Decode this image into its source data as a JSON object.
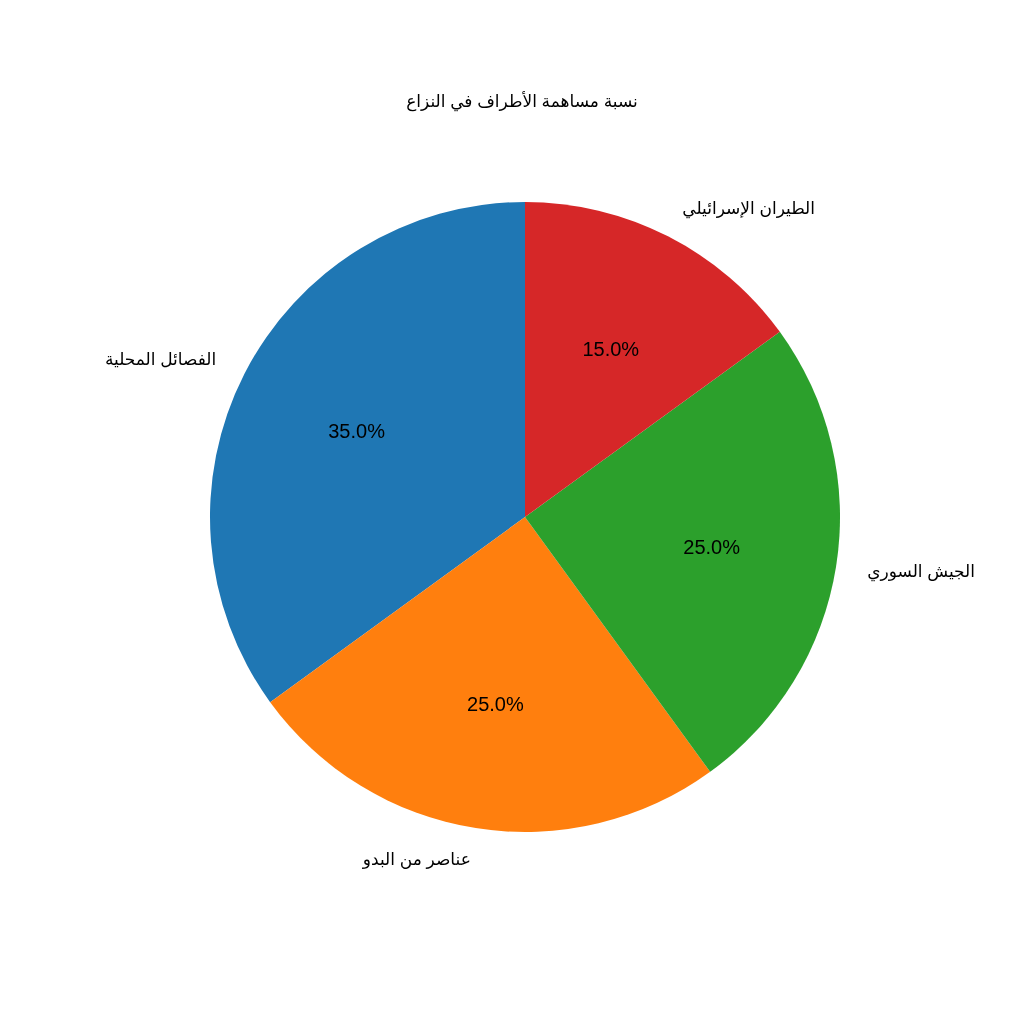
{
  "chart_data": {
    "type": "pie",
    "title": "نسبة مساهمة الأطراف في النزاع",
    "categories": [
      "الفصائل المحلية",
      "عناصر من البدو",
      "الجيش السوري",
      "الطيران الإسرائيلي"
    ],
    "values": [
      35,
      25,
      25,
      15
    ],
    "colors": [
      "#1f77b4",
      "#ff7f0e",
      "#2ca02c",
      "#d62728"
    ],
    "value_labels": [
      "35.0%",
      "25.0%",
      "25.0%",
      "15.0%"
    ]
  }
}
